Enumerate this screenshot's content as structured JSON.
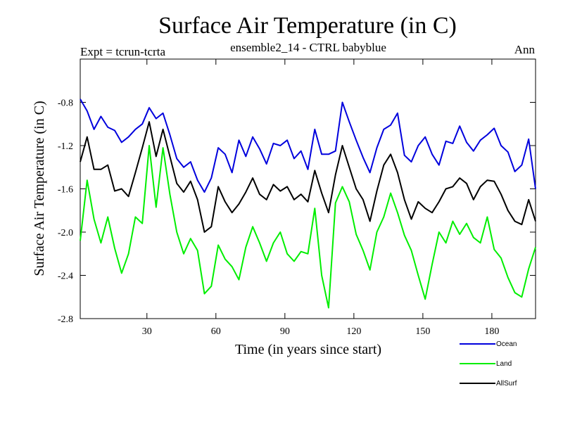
{
  "chart_data": {
    "type": "line",
    "title": "Surface Air Temperature (in C)",
    "subtitle_left": "Expt = tcrun-tcrta",
    "subtitle_center": "ensemble2_14 - CTRL babyblue",
    "subtitle_right": "Ann",
    "xlabel": "Time (in years since start)",
    "ylabel": "Surface Air Temperature (in C)",
    "xlim": [
      1,
      199
    ],
    "ylim": [
      -2.8,
      -0.4
    ],
    "xticks": [
      30,
      60,
      90,
      120,
      150,
      180
    ],
    "xtick_labels": [
      "30",
      "60",
      "90",
      "120",
      "150",
      "180"
    ],
    "yticks": [
      -2.8,
      -2.4,
      -2.0,
      -1.6,
      -1.2,
      -0.8
    ],
    "ytick_labels": [
      "-2.8",
      "-2.4",
      "-2.0",
      "-1.6",
      "-1.2",
      "-0.8"
    ],
    "grid": false,
    "legend_position": "bottom-right outside",
    "x": [
      1,
      4,
      7,
      10,
      13,
      16,
      19,
      22,
      25,
      28,
      31,
      34,
      37,
      40,
      43,
      46,
      49,
      52,
      55,
      58,
      61,
      64,
      67,
      70,
      73,
      76,
      79,
      82,
      85,
      88,
      91,
      94,
      97,
      100,
      103,
      106,
      109,
      112,
      115,
      118,
      121,
      124,
      127,
      130,
      133,
      136,
      139,
      142,
      145,
      148,
      151,
      154,
      157,
      160,
      163,
      166,
      169,
      172,
      175,
      178,
      181,
      184,
      187,
      190,
      193,
      196,
      199
    ],
    "series": [
      {
        "name": "Ocean",
        "color": "#0000dd",
        "values": [
          -0.77,
          -0.88,
          -1.05,
          -0.93,
          -1.03,
          -1.06,
          -1.17,
          -1.12,
          -1.05,
          -1.0,
          -0.85,
          -0.95,
          -0.9,
          -1.1,
          -1.32,
          -1.4,
          -1.35,
          -1.52,
          -1.63,
          -1.5,
          -1.22,
          -1.28,
          -1.45,
          -1.15,
          -1.3,
          -1.12,
          -1.23,
          -1.37,
          -1.18,
          -1.2,
          -1.15,
          -1.32,
          -1.25,
          -1.42,
          -1.05,
          -1.28,
          -1.28,
          -1.25,
          -0.8,
          -0.98,
          -1.15,
          -1.31,
          -1.45,
          -1.22,
          -1.05,
          -1.01,
          -0.9,
          -1.29,
          -1.35,
          -1.2,
          -1.12,
          -1.28,
          -1.38,
          -1.16,
          -1.18,
          -1.02,
          -1.17,
          -1.25,
          -1.15,
          -1.1,
          -1.04,
          -1.2,
          -1.26,
          -1.44,
          -1.38,
          -1.14,
          -1.6
        ]
      },
      {
        "name": "Land",
        "color": "#00ee00",
        "values": [
          -2.08,
          -1.52,
          -1.88,
          -2.1,
          -1.86,
          -2.15,
          -2.38,
          -2.2,
          -1.86,
          -1.92,
          -1.2,
          -1.77,
          -1.22,
          -1.65,
          -2.0,
          -2.2,
          -2.06,
          -2.17,
          -2.57,
          -2.5,
          -2.12,
          -2.25,
          -2.32,
          -2.44,
          -2.14,
          -1.95,
          -2.1,
          -2.27,
          -2.1,
          -2.0,
          -2.2,
          -2.27,
          -2.18,
          -2.2,
          -1.78,
          -2.4,
          -2.7,
          -1.73,
          -1.58,
          -1.72,
          -2.02,
          -2.17,
          -2.35,
          -2.0,
          -1.86,
          -1.64,
          -1.82,
          -2.03,
          -2.17,
          -2.4,
          -2.62,
          -2.3,
          -2.0,
          -2.1,
          -1.9,
          -2.02,
          -1.92,
          -2.05,
          -2.1,
          -1.86,
          -2.16,
          -2.24,
          -2.42,
          -2.56,
          -2.6,
          -2.34,
          -2.14
        ]
      },
      {
        "name": "AllSurf",
        "color": "#000000",
        "values": [
          -1.35,
          -1.12,
          -1.42,
          -1.42,
          -1.38,
          -1.62,
          -1.6,
          -1.67,
          -1.45,
          -1.22,
          -0.98,
          -1.3,
          -1.05,
          -1.3,
          -1.55,
          -1.63,
          -1.53,
          -1.7,
          -2.0,
          -1.95,
          -1.58,
          -1.72,
          -1.82,
          -1.74,
          -1.63,
          -1.5,
          -1.65,
          -1.7,
          -1.56,
          -1.62,
          -1.58,
          -1.7,
          -1.65,
          -1.72,
          -1.43,
          -1.64,
          -1.82,
          -1.47,
          -1.2,
          -1.4,
          -1.6,
          -1.7,
          -1.9,
          -1.62,
          -1.38,
          -1.28,
          -1.45,
          -1.7,
          -1.88,
          -1.72,
          -1.78,
          -1.82,
          -1.72,
          -1.6,
          -1.58,
          -1.5,
          -1.55,
          -1.7,
          -1.58,
          -1.52,
          -1.53,
          -1.65,
          -1.8,
          -1.9,
          -1.93,
          -1.7,
          -1.9
        ]
      }
    ]
  }
}
